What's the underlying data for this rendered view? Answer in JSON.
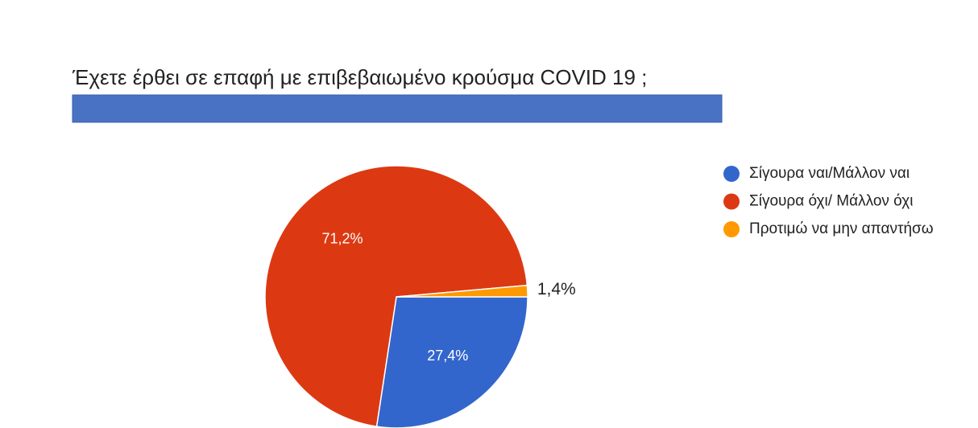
{
  "chart_data": {
    "type": "pie",
    "title": "Έχετε έρθει σε επαφή με επιβεβαιωμένο κρούσμα COVID 19 ;",
    "categories": [
      "Σίγουρα ναι/Μάλλον ναι",
      "Σίγουρα όχι/ Μάλλον όχι",
      "Προτιμώ να μην απαντήσω"
    ],
    "values": [
      27.4,
      71.2,
      1.4
    ],
    "value_labels": [
      "27,4%",
      "71,2%",
      "1,4%"
    ],
    "colors": [
      "#3366cc",
      "#dc3912",
      "#ff9900"
    ],
    "legend": "right"
  }
}
